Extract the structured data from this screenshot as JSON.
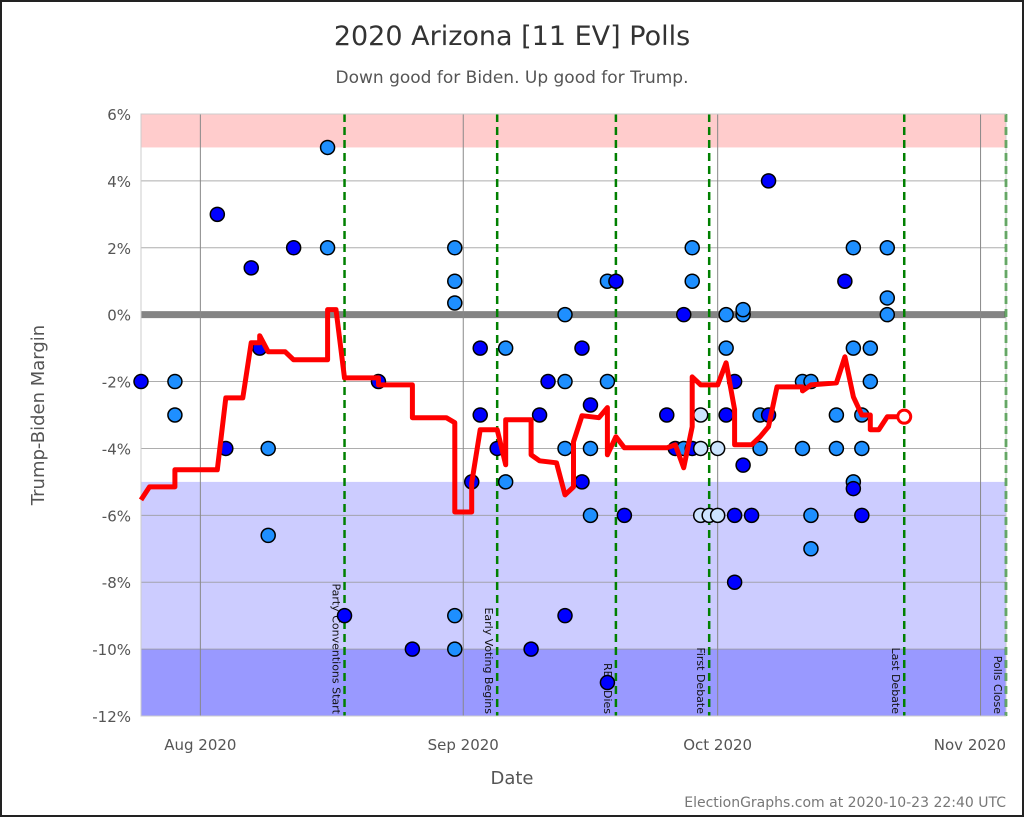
{
  "chart_data": {
    "type": "scatter",
    "title": "2020 Arizona [11 EV] Polls",
    "subtitle": "Down good for Biden. Up good for Trump.",
    "xlabel": "Date",
    "ylabel": "Trump-Biden Margin",
    "footer": "ElectionGraphs.com at 2020-10-23 22:40 UTC",
    "xlim": [
      "2020-07-24",
      "2020-11-03"
    ],
    "ylim": [
      -12,
      6
    ],
    "grid": true,
    "x_ticks": [
      {
        "date": "2020-07-31",
        "label": "Aug 2020"
      },
      {
        "date": "2020-08-31",
        "label": "Sep 2020"
      },
      {
        "date": "2020-09-30",
        "label": "Oct 2020"
      },
      {
        "date": "2020-10-31",
        "label": "Nov 2020"
      }
    ],
    "y_ticks": [
      {
        "value": 6,
        "label": "6%"
      },
      {
        "value": 4,
        "label": "4%"
      },
      {
        "value": 2,
        "label": "2%"
      },
      {
        "value": 0,
        "label": "0%"
      },
      {
        "value": -2,
        "label": "-2%"
      },
      {
        "value": -4,
        "label": "-4%"
      },
      {
        "value": -6,
        "label": "-6%"
      },
      {
        "value": -8,
        "label": "-8%"
      },
      {
        "value": -10,
        "label": "-10%"
      },
      {
        "value": -12,
        "label": "-12%"
      }
    ],
    "bands": [
      {
        "from": 5,
        "to": 6,
        "color": "#ffcccc"
      },
      {
        "from": -10,
        "to": -5,
        "color": "#ccccff"
      },
      {
        "from": -12,
        "to": -10,
        "color": "#9999ff"
      }
    ],
    "colors": {
      "dark": "#0000ff",
      "mid": "#1e8fff",
      "light": "#cce4ff",
      "trend": "#ff0000",
      "event": "#008000",
      "zero": "#777777"
    },
    "events": [
      {
        "date": "2020-08-17",
        "label": "Party Conventions Start"
      },
      {
        "date": "2020-09-04",
        "label": "Early Voting Begins"
      },
      {
        "date": "2020-09-18",
        "label": "RBG Dies"
      },
      {
        "date": "2020-09-29",
        "label": "First Debate"
      },
      {
        "date": "2020-10-22",
        "label": "Last Debate"
      },
      {
        "date": "2020-11-03",
        "label": "Polls Close"
      }
    ],
    "polls": [
      [
        "2020-07-24",
        -2,
        "dark"
      ],
      [
        "2020-07-28",
        -2,
        "mid"
      ],
      [
        "2020-07-28",
        -3,
        "mid"
      ],
      [
        "2020-08-02",
        3,
        "dark"
      ],
      [
        "2020-08-03",
        -4,
        "dark"
      ],
      [
        "2020-08-06",
        1.4,
        "dark"
      ],
      [
        "2020-08-07",
        -1,
        "dark"
      ],
      [
        "2020-08-08",
        -4,
        "mid"
      ],
      [
        "2020-08-08",
        -6.6,
        "mid"
      ],
      [
        "2020-08-11",
        2,
        "dark"
      ],
      [
        "2020-08-15",
        5,
        "mid"
      ],
      [
        "2020-08-15",
        2,
        "mid"
      ],
      [
        "2020-08-17",
        -9,
        "dark"
      ],
      [
        "2020-08-21",
        -2,
        "dark"
      ],
      [
        "2020-08-25",
        -10,
        "dark"
      ],
      [
        "2020-08-30",
        2,
        "mid"
      ],
      [
        "2020-08-30",
        1,
        "mid"
      ],
      [
        "2020-08-30",
        0.35,
        "mid"
      ],
      [
        "2020-08-30",
        -9,
        "mid"
      ],
      [
        "2020-08-30",
        -10,
        "mid"
      ],
      [
        "2020-09-01",
        -5,
        "dark"
      ],
      [
        "2020-09-02",
        -1,
        "dark"
      ],
      [
        "2020-09-02",
        -3,
        "dark"
      ],
      [
        "2020-09-04",
        -4,
        "dark"
      ],
      [
        "2020-09-05",
        -1,
        "mid"
      ],
      [
        "2020-09-05",
        -5,
        "mid"
      ],
      [
        "2020-09-08",
        -10,
        "dark"
      ],
      [
        "2020-09-09",
        -3,
        "dark"
      ],
      [
        "2020-09-10",
        -2,
        "dark"
      ],
      [
        "2020-09-12",
        -9,
        "dark"
      ],
      [
        "2020-09-12",
        0,
        "mid"
      ],
      [
        "2020-09-12",
        -2,
        "mid"
      ],
      [
        "2020-09-12",
        -4,
        "mid"
      ],
      [
        "2020-09-14",
        -1,
        "dark"
      ],
      [
        "2020-09-14",
        -5,
        "dark"
      ],
      [
        "2020-09-15",
        -2.7,
        "dark"
      ],
      [
        "2020-09-15",
        -6,
        "mid"
      ],
      [
        "2020-09-15",
        -4,
        "mid"
      ],
      [
        "2020-09-17",
        1,
        "mid"
      ],
      [
        "2020-09-17",
        -2,
        "mid"
      ],
      [
        "2020-09-18",
        1,
        "dark"
      ],
      [
        "2020-09-17",
        -11,
        "dark"
      ],
      [
        "2020-09-19",
        -6,
        "dark"
      ],
      [
        "2020-09-24",
        -3,
        "dark"
      ],
      [
        "2020-09-25",
        -4,
        "dark"
      ],
      [
        "2020-09-26",
        0,
        "dark"
      ],
      [
        "2020-09-26",
        -4,
        "mid"
      ],
      [
        "2020-09-27",
        2,
        "mid"
      ],
      [
        "2020-09-27",
        1,
        "mid"
      ],
      [
        "2020-09-27",
        -4,
        "dark"
      ],
      [
        "2020-09-28",
        -4,
        "light"
      ],
      [
        "2020-09-28",
        -3,
        "light"
      ],
      [
        "2020-09-28",
        -6,
        "light"
      ],
      [
        "2020-09-29",
        -6,
        "light"
      ],
      [
        "2020-09-30",
        -6,
        "light"
      ],
      [
        "2020-09-30",
        -4,
        "light"
      ],
      [
        "2020-10-01",
        0,
        "mid"
      ],
      [
        "2020-10-01",
        -1,
        "mid"
      ],
      [
        "2020-10-01",
        -3,
        "dark"
      ],
      [
        "2020-10-02",
        -8,
        "dark"
      ],
      [
        "2020-10-02",
        -2,
        "dark"
      ],
      [
        "2020-10-02",
        -6,
        "dark"
      ],
      [
        "2020-10-03",
        -4.5,
        "dark"
      ],
      [
        "2020-10-03",
        0,
        "mid"
      ],
      [
        "2020-10-03",
        0.15,
        "mid"
      ],
      [
        "2020-10-04",
        -6,
        "dark"
      ],
      [
        "2020-10-05",
        -3,
        "mid"
      ],
      [
        "2020-10-05",
        -4,
        "mid"
      ],
      [
        "2020-10-06",
        -3,
        "dark"
      ],
      [
        "2020-10-06",
        4,
        "dark"
      ],
      [
        "2020-10-10",
        -2,
        "mid"
      ],
      [
        "2020-10-10",
        -4,
        "mid"
      ],
      [
        "2020-10-11",
        -2,
        "mid"
      ],
      [
        "2020-10-11",
        -6,
        "mid"
      ],
      [
        "2020-10-11",
        -7,
        "mid"
      ],
      [
        "2020-10-14",
        -3,
        "mid"
      ],
      [
        "2020-10-14",
        -4,
        "mid"
      ],
      [
        "2020-10-15",
        1,
        "dark"
      ],
      [
        "2020-10-16",
        -1,
        "mid"
      ],
      [
        "2020-10-16",
        2,
        "mid"
      ],
      [
        "2020-10-16",
        -5,
        "mid"
      ],
      [
        "2020-10-16",
        -5.2,
        "dark"
      ],
      [
        "2020-10-17",
        -3,
        "mid"
      ],
      [
        "2020-10-17",
        -4,
        "mid"
      ],
      [
        "2020-10-17",
        -6,
        "dark"
      ],
      [
        "2020-10-18",
        -1,
        "mid"
      ],
      [
        "2020-10-18",
        -2,
        "mid"
      ],
      [
        "2020-10-20",
        2,
        "mid"
      ],
      [
        "2020-10-20",
        0.5,
        "mid"
      ],
      [
        "2020-10-20",
        0,
        "mid"
      ]
    ],
    "trend": [
      [
        "2020-07-24",
        -5.54
      ],
      [
        "2020-07-25",
        -5.15
      ],
      [
        "2020-07-28",
        -5.15
      ],
      [
        "2020-07-28",
        -4.64
      ],
      [
        "2020-08-02",
        -4.64
      ],
      [
        "2020-08-03",
        -2.49
      ],
      [
        "2020-08-05",
        -2.49
      ],
      [
        "2020-08-06",
        -0.84
      ],
      [
        "2020-08-07",
        -0.84
      ],
      [
        "2020-08-07",
        -0.63
      ],
      [
        "2020-08-08",
        -1.11
      ],
      [
        "2020-08-10",
        -1.11
      ],
      [
        "2020-08-11",
        -1.35
      ],
      [
        "2020-08-15",
        -1.35
      ],
      [
        "2020-08-15",
        0.15
      ],
      [
        "2020-08-16",
        0.15
      ],
      [
        "2020-08-17",
        -1.89
      ],
      [
        "2020-08-21",
        -1.89
      ],
      [
        "2020-08-21",
        -2.1
      ],
      [
        "2020-08-25",
        -2.1
      ],
      [
        "2020-08-25",
        -3.08
      ],
      [
        "2020-08-29",
        -3.08
      ],
      [
        "2020-08-30",
        -3.23
      ],
      [
        "2020-08-30",
        -5.9
      ],
      [
        "2020-09-01",
        -5.9
      ],
      [
        "2020-09-01",
        -5.03
      ],
      [
        "2020-09-02",
        -3.44
      ],
      [
        "2020-09-04",
        -3.44
      ],
      [
        "2020-09-05",
        -4.49
      ],
      [
        "2020-09-05",
        -3.14
      ],
      [
        "2020-09-08",
        -3.14
      ],
      [
        "2020-09-08",
        -4.19
      ],
      [
        "2020-09-09",
        -4.37
      ],
      [
        "2020-09-11",
        -4.43
      ],
      [
        "2020-09-12",
        -5.39
      ],
      [
        "2020-09-13",
        -5.15
      ],
      [
        "2020-09-13",
        -3.8
      ],
      [
        "2020-09-14",
        -3.02
      ],
      [
        "2020-09-16",
        -3.08
      ],
      [
        "2020-09-17",
        -2.78
      ],
      [
        "2020-09-17",
        -4.19
      ],
      [
        "2020-09-18",
        -3.65
      ],
      [
        "2020-09-19",
        -3.98
      ],
      [
        "2020-09-24",
        -3.98
      ],
      [
        "2020-09-25",
        -3.89
      ],
      [
        "2020-09-26",
        -4.58
      ],
      [
        "2020-09-27",
        -3.35
      ],
      [
        "2020-09-27",
        -1.86
      ],
      [
        "2020-09-28",
        -2.1
      ],
      [
        "2020-09-30",
        -2.1
      ],
      [
        "2020-10-01",
        -1.44
      ],
      [
        "2020-10-02",
        -2.84
      ],
      [
        "2020-10-02",
        -3.89
      ],
      [
        "2020-10-04",
        -3.89
      ],
      [
        "2020-10-05",
        -3.65
      ],
      [
        "2020-10-06",
        -3.35
      ],
      [
        "2020-10-07",
        -2.16
      ],
      [
        "2020-10-10",
        -2.16
      ],
      [
        "2020-10-10",
        -2.28
      ],
      [
        "2020-10-11",
        -2.1
      ],
      [
        "2020-10-14",
        -2.04
      ],
      [
        "2020-10-15",
        -1.26
      ],
      [
        "2020-10-16",
        -2.46
      ],
      [
        "2020-10-17",
        -3.0
      ],
      [
        "2020-10-18",
        -3.0
      ],
      [
        "2020-10-18",
        -3.44
      ],
      [
        "2020-10-19",
        -3.44
      ],
      [
        "2020-10-20",
        -3.05
      ],
      [
        "2020-10-22",
        -3.05
      ]
    ]
  }
}
